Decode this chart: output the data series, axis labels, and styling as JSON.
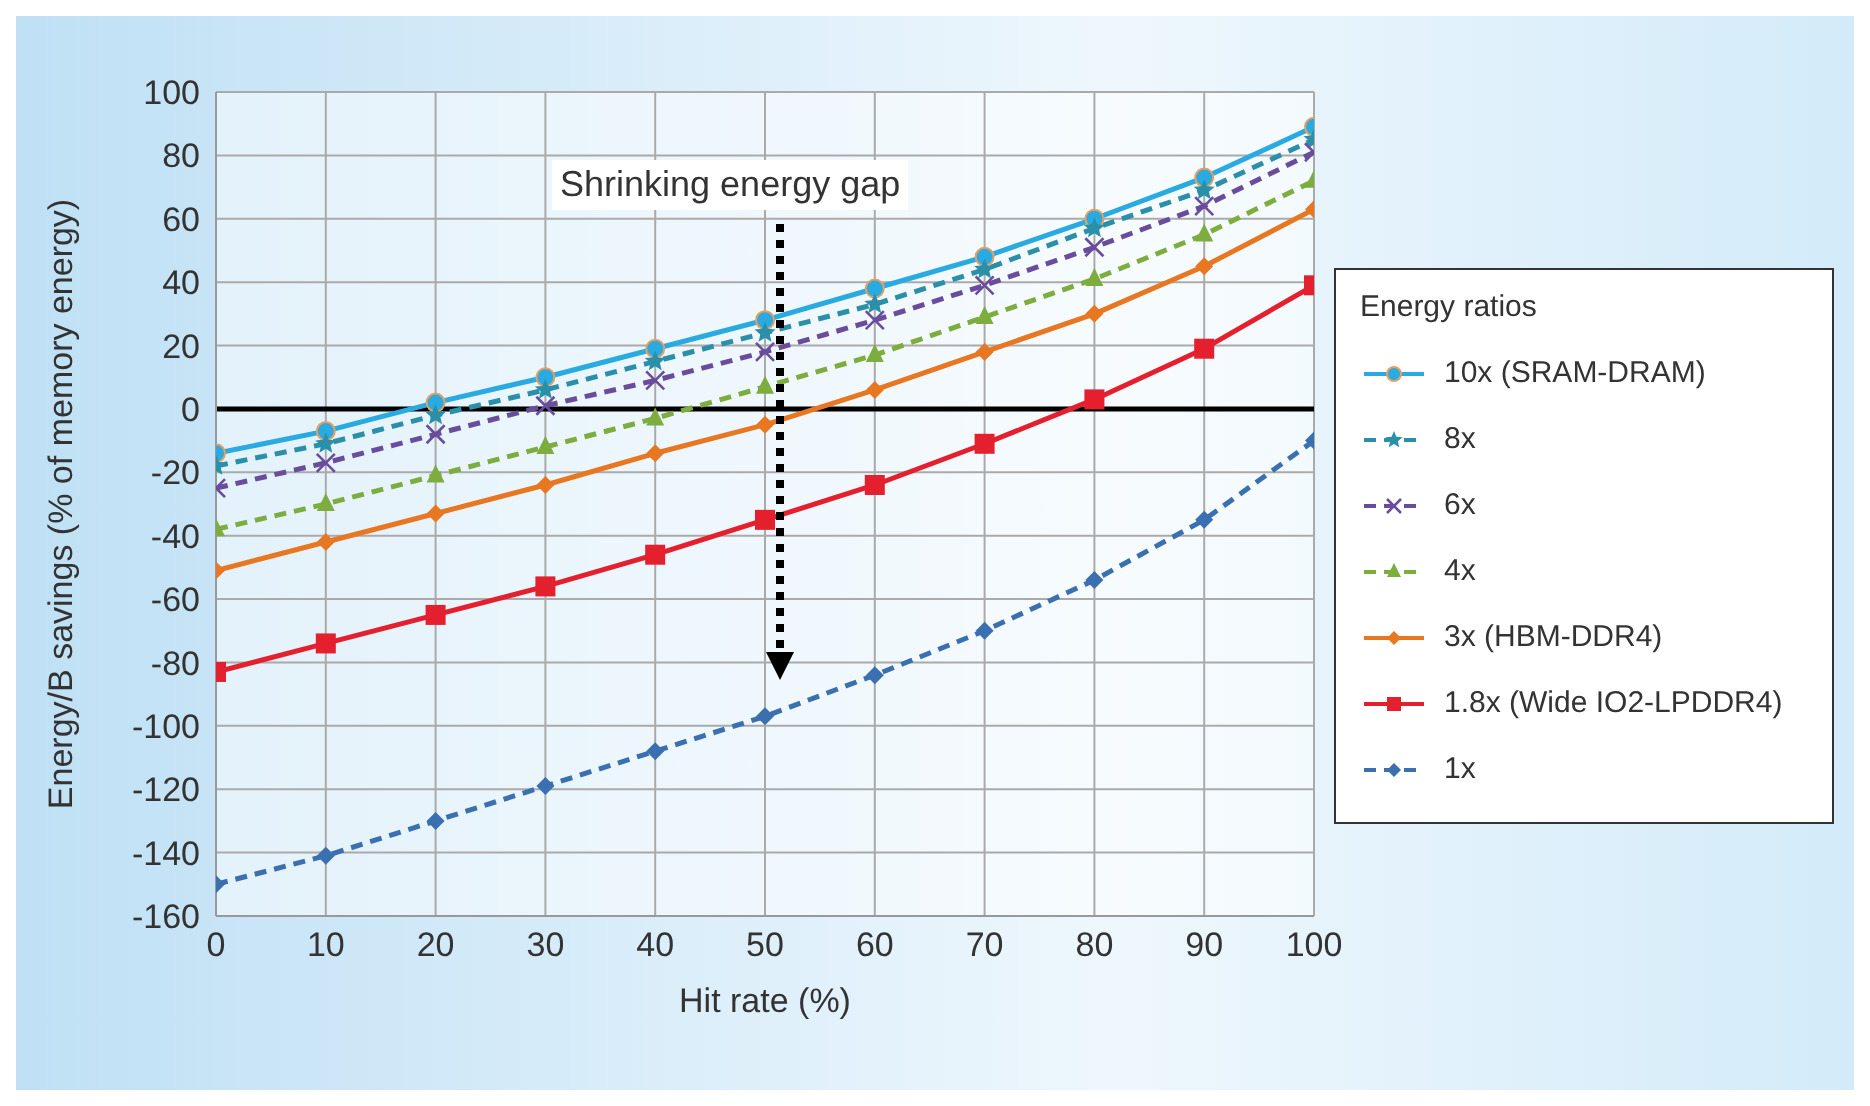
{
  "chart_data": {
    "type": "line",
    "xlabel": "Hit rate (%)",
    "ylabel": "Energy/B savings (% of memory energy)",
    "legend_title": "Energy ratios",
    "legend": "right",
    "grid": true,
    "x": [
      0,
      10,
      20,
      30,
      40,
      50,
      60,
      70,
      80,
      90,
      100
    ],
    "xlim": [
      0,
      100
    ],
    "xticks": [
      0,
      10,
      20,
      30,
      40,
      50,
      60,
      70,
      80,
      90,
      100
    ],
    "ylim": [
      -160,
      100
    ],
    "yticks": [
      -160,
      -140,
      -120,
      -100,
      -80,
      -60,
      -40,
      -20,
      0,
      20,
      40,
      60,
      80,
      100
    ],
    "ref_lines": [
      {
        "axis": "y",
        "value": 0,
        "color": "#000000"
      }
    ],
    "annotations": [
      "Shrinking energy gap"
    ],
    "series": [
      {
        "name": "10x (SRAM-DRAM)",
        "color": "#29abe2",
        "marker": "circle",
        "line_style": "solid",
        "values": [
          -14,
          -7,
          2,
          10,
          19,
          28,
          38,
          48,
          60,
          73,
          89
        ]
      },
      {
        "name": "8x",
        "color": "#2a8fa8",
        "marker": "star",
        "line_style": "dashed",
        "values": [
          -18,
          -11,
          -2,
          6,
          15,
          24,
          33,
          44,
          57,
          69,
          85
        ]
      },
      {
        "name": "6x",
        "color": "#6a4c9c",
        "marker": "cross",
        "line_style": "dashed",
        "values": [
          -25,
          -17,
          -8,
          1,
          9,
          18,
          28,
          39,
          51,
          64,
          81
        ]
      },
      {
        "name": "4x",
        "color": "#7cad3e",
        "marker": "triangle",
        "line_style": "dashed",
        "values": [
          -38,
          -30,
          -21,
          -12,
          -3,
          7,
          17,
          29,
          41,
          55,
          72
        ]
      },
      {
        "name": "3x (HBM-DDR4)",
        "color": "#e87722",
        "marker": "diamond",
        "line_style": "solid",
        "values": [
          -51,
          -42,
          -33,
          -24,
          -14,
          -5,
          6,
          18,
          30,
          45,
          63
        ]
      },
      {
        "name": "1.8x (Wide IO2-LPDDR4)",
        "color": "#e5202e",
        "marker": "square",
        "line_style": "solid",
        "values": [
          -83,
          -74,
          -65,
          -56,
          -46,
          -35,
          -24,
          -11,
          3,
          19,
          39
        ]
      },
      {
        "name": "1x",
        "color": "#3a6fb0",
        "marker": "diamond",
        "line_style": "dashed",
        "values": [
          -150,
          -141,
          -130,
          -119,
          -108,
          -97,
          -84,
          -70,
          -54,
          -35,
          -10
        ]
      }
    ]
  }
}
